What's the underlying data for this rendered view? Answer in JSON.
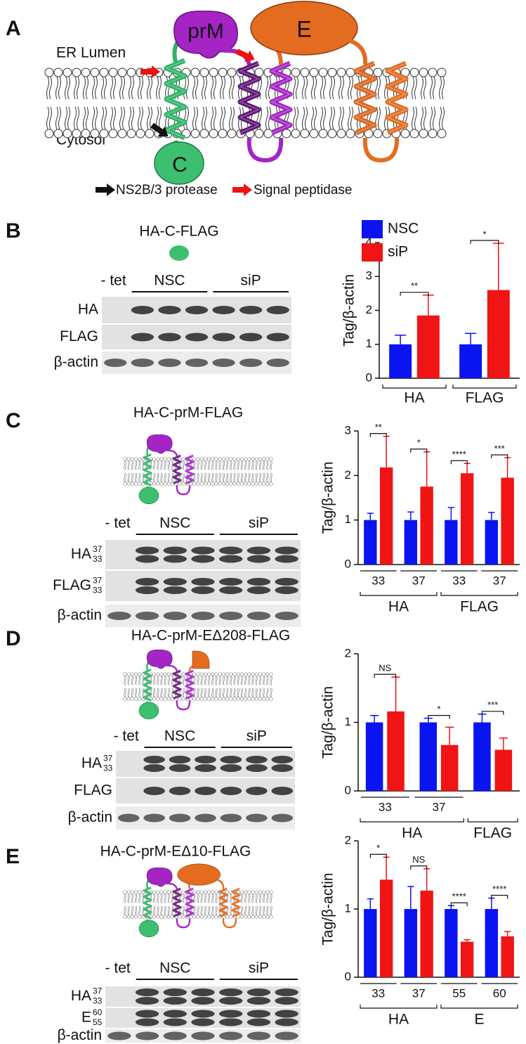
{
  "panels": {
    "A": {
      "label": "A",
      "er_lumen": "ER Lumen",
      "cytosol": "Cytosol",
      "prM": "prM",
      "E": "E",
      "C": "C",
      "legend": [
        "NS2B/3 protease",
        "Signal peptidase"
      ]
    },
    "B": {
      "label": "B",
      "construct": "HA-C-FLAG",
      "tet": "- tet",
      "groups": [
        "NSC",
        "siP"
      ],
      "rows": [
        {
          "name": "HA"
        },
        {
          "name": "FLAG"
        },
        {
          "name": "β-actin"
        }
      ]
    },
    "C": {
      "label": "C",
      "construct": "HA-C-prM-FLAG",
      "tet": "- tet",
      "groups": [
        "NSC",
        "siP"
      ],
      "rows": [
        {
          "name": "HA",
          "mw": [
            "37",
            "33"
          ]
        },
        {
          "name": "FLAG",
          "mw": [
            "37",
            "33"
          ]
        },
        {
          "name": "β-actin"
        }
      ]
    },
    "D": {
      "label": "D",
      "construct": "HA-C-prM-EΔ208-FLAG",
      "tet": "- tet",
      "groups": [
        "NSC",
        "siP"
      ],
      "rows": [
        {
          "name": "HA",
          "mw": [
            "37",
            "33"
          ]
        },
        {
          "name": "FLAG"
        },
        {
          "name": "β-actin"
        }
      ]
    },
    "E": {
      "label": "E",
      "construct": "HA-C-prM-EΔ10-FLAG",
      "tet": "- tet",
      "groups": [
        "NSC",
        "siP"
      ],
      "rows": [
        {
          "name": "HA",
          "mw": [
            "37",
            "33"
          ]
        },
        {
          "name": "E",
          "mw": [
            "60",
            "55"
          ]
        },
        {
          "name": "β-actin"
        }
      ]
    }
  },
  "chart_data": [
    {
      "type": "bar",
      "y_label": "Tag/β-actin",
      "ylim": [
        0,
        4
      ],
      "yticks": [
        0,
        1,
        2,
        3,
        4
      ],
      "legend": "upper left",
      "categories": [
        "HA",
        "FLAG"
      ],
      "series": [
        {
          "name": "NSC",
          "color": "#0a14f0",
          "values": [
            1,
            1
          ],
          "errors": [
            0.27,
            0.32
          ]
        },
        {
          "name": "siP",
          "color": "#f01414",
          "values": [
            1.85,
            2.6
          ],
          "errors": [
            0.6,
            1.38
          ]
        }
      ],
      "annotations": [
        "**",
        "*"
      ]
    },
    {
      "type": "bar",
      "y_label": "Tag/β-actin",
      "ylim": [
        0,
        3
      ],
      "yticks": [
        0,
        1,
        2,
        3
      ],
      "categories": [
        "33",
        "37",
        "33",
        "37"
      ],
      "groups": [
        {
          "label": "HA",
          "span": 2
        },
        {
          "label": "FLAG",
          "span": 2
        }
      ],
      "series": [
        {
          "color": "#0a14f0",
          "values": [
            1,
            1,
            1,
            1
          ],
          "errors": [
            0.15,
            0.18,
            0.28,
            0.17
          ]
        },
        {
          "color": "#f01414",
          "values": [
            2.18,
            1.75,
            2.05,
            1.95
          ],
          "errors": [
            0.7,
            0.78,
            0.22,
            0.45
          ]
        }
      ],
      "annotations": [
        "**",
        "*",
        "****",
        "***"
      ]
    },
    {
      "type": "bar",
      "y_label": "Tag/β-actin",
      "ylim": [
        0,
        2
      ],
      "yticks": [
        0,
        1,
        2
      ],
      "categories": [
        "33",
        "37",
        null
      ],
      "groups": [
        {
          "label": "HA",
          "span": 2
        },
        {
          "label": "FLAG",
          "span": 1
        }
      ],
      "series": [
        {
          "color": "#0a14f0",
          "values": [
            1,
            1,
            1
          ],
          "errors": [
            0.1,
            0.06,
            0.12
          ]
        },
        {
          "color": "#f01414",
          "values": [
            1.16,
            0.67,
            0.6
          ],
          "errors": [
            0.5,
            0.26,
            0.17
          ]
        }
      ],
      "annotations": [
        "NS",
        "*",
        "***"
      ]
    },
    {
      "type": "bar",
      "y_label": "Tag/β-actin",
      "ylim": [
        0,
        2
      ],
      "yticks": [
        0,
        1,
        2
      ],
      "categories": [
        "33",
        "37",
        "55",
        "60"
      ],
      "groups": [
        {
          "label": "HA",
          "span": 2
        },
        {
          "label": "E",
          "span": 2
        }
      ],
      "series": [
        {
          "color": "#0a14f0",
          "values": [
            1,
            1,
            1,
            1
          ],
          "errors": [
            0.15,
            0.33,
            0.05,
            0.16
          ]
        },
        {
          "color": "#f01414",
          "values": [
            1.43,
            1.27,
            0.52,
            0.6
          ],
          "errors": [
            0.33,
            0.32,
            0.03,
            0.07
          ]
        }
      ],
      "annotations": [
        "*",
        "NS",
        "****",
        "****"
      ]
    }
  ]
}
